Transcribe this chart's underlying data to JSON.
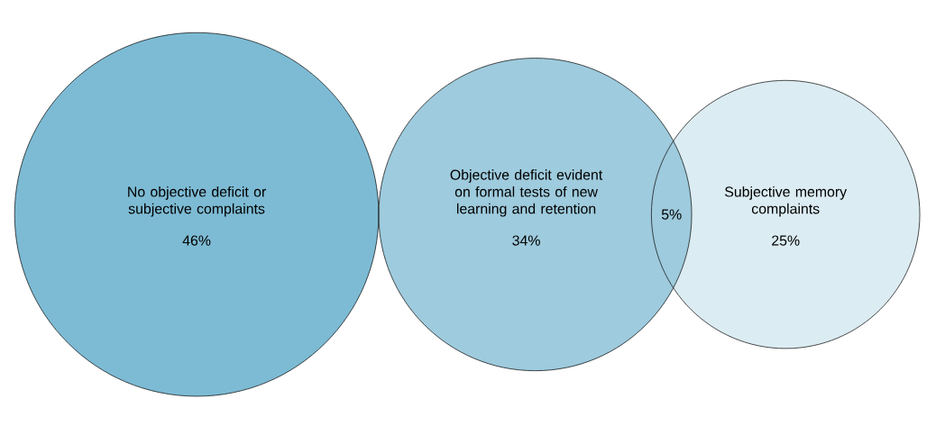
{
  "chart_data": {
    "type": "other",
    "categories": [
      "No objective deficit or subjective complaints",
      "Objective deficit evident on formal tests of new learning and retention",
      "Subjective memory complaints"
    ],
    "values": [
      46,
      34,
      25
    ],
    "value_labels": [
      "46%",
      "34%",
      "25%"
    ],
    "colors": [
      "#7dbbd4",
      "#9ecbdd",
      "#dbecf2"
    ],
    "annotations": [
      "5%"
    ]
  }
}
